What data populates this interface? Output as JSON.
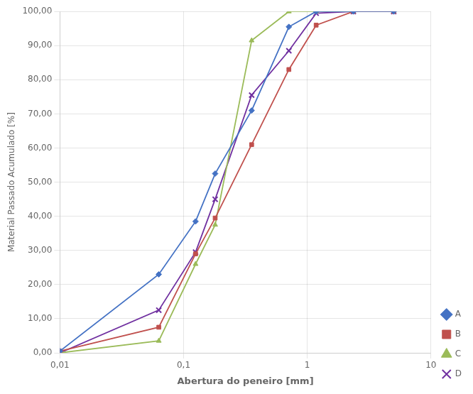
{
  "chart_data": {
    "type": "line",
    "x": [
      0.01,
      0.063,
      0.125,
      0.18,
      0.355,
      0.71,
      1.18,
      2.36,
      5.0
    ],
    "series": [
      {
        "name": "A",
        "color": "#4472C4",
        "marker": "diamond",
        "values": [
          0.5,
          23.0,
          38.5,
          52.5,
          71.0,
          95.5,
          100.0,
          100.0,
          100.0
        ]
      },
      {
        "name": "B",
        "color": "#C0504D",
        "marker": "square",
        "values": [
          0.5,
          7.5,
          29.0,
          39.5,
          61.0,
          83.0,
          96.0,
          100.0,
          100.0
        ]
      },
      {
        "name": "C",
        "color": "#9BBB59",
        "marker": "triangle",
        "values": [
          0.0,
          3.5,
          26.0,
          37.5,
          91.5,
          100.0,
          100.0,
          100.0,
          100.0
        ]
      },
      {
        "name": "D",
        "color": "#7030A0",
        "marker": "x",
        "values": [
          0.0,
          12.5,
          29.5,
          45.0,
          75.5,
          88.5,
          99.5,
          100.0,
          100.0
        ]
      }
    ],
    "xlabel": "Abertura do peneiro [mm]",
    "ylabel": "Material Passado Acumulado [%]",
    "log": "x",
    "xlim": [
      0.01,
      10.0
    ],
    "xticks": [
      {
        "value": 0.01,
        "label": "0,01"
      },
      {
        "value": 0.1,
        "label": "0,1"
      },
      1,
      10
    ],
    "ylim": [
      0.0,
      100.0
    ],
    "yticks": [
      {
        "value": 0,
        "label": "0,00"
      },
      {
        "value": 10,
        "label": "10,00"
      },
      {
        "value": 20,
        "label": "20,00"
      },
      {
        "value": 30,
        "label": "30,00"
      },
      {
        "value": 40,
        "label": "40,00"
      },
      {
        "value": 50,
        "label": "50,00"
      },
      {
        "value": 60,
        "label": "60,00"
      },
      {
        "value": 70,
        "label": "70,00"
      },
      {
        "value": 80,
        "label": "80,00"
      },
      {
        "value": 90,
        "label": "90,00"
      },
      {
        "value": 100,
        "label": "100,00"
      }
    ],
    "grid": true,
    "legend": "lower right"
  }
}
